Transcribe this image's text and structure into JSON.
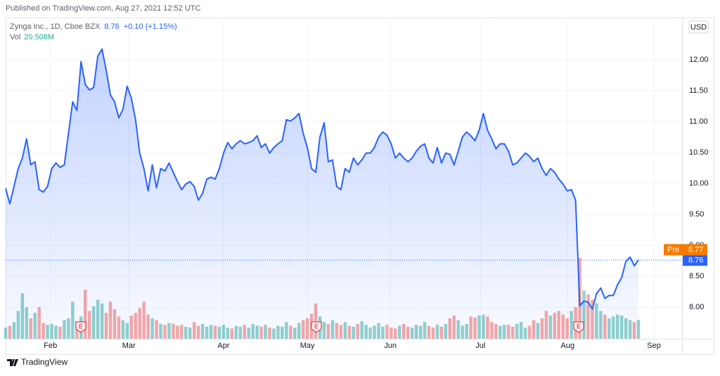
{
  "header": {
    "published": "Published on TradingView.com, Aug 27, 2021 12:52 UTC",
    "brand": "TradingView"
  },
  "chart_data": {
    "type": "area",
    "symbol": "Zynga Inc., 1D, Cboe BZX",
    "change_label": "+0.10 (+1.15%)",
    "currency": "USD",
    "color": "#2962ff",
    "up_color": "rgba(38,166,154,0.5)",
    "down_color": "rgba(239,83,80,0.5)",
    "grid": true,
    "values": [
      9.92,
      9.67,
      9.95,
      10.24,
      10.41,
      10.72,
      10.3,
      10.35,
      9.9,
      9.86,
      9.95,
      10.24,
      10.33,
      10.26,
      10.3,
      10.81,
      11.32,
      11.18,
      11.97,
      11.6,
      11.51,
      11.55,
      12.06,
      12.17,
      11.83,
      11.43,
      11.32,
      11.06,
      11.2,
      11.57,
      11.38,
      11.03,
      10.49,
      10.24,
      9.88,
      10.3,
      9.93,
      10.24,
      10.2,
      10.33,
      10.18,
      10.03,
      9.9,
      9.99,
      10.03,
      9.95,
      9.73,
      9.84,
      10.07,
      10.1,
      10.07,
      10.24,
      10.49,
      10.66,
      10.56,
      10.64,
      10.69,
      10.64,
      10.66,
      10.69,
      10.77,
      10.58,
      10.64,
      10.49,
      10.58,
      10.64,
      10.69,
      11.03,
      11.01,
      11.06,
      11.13,
      10.81,
      10.58,
      10.24,
      10.18,
      10.75,
      10.98,
      10.35,
      10.38,
      9.95,
      9.9,
      10.24,
      10.18,
      10.41,
      10.3,
      10.38,
      10.49,
      10.49,
      10.58,
      10.75,
      10.83,
      10.78,
      10.64,
      10.41,
      10.49,
      10.41,
      10.35,
      10.41,
      10.52,
      10.6,
      10.64,
      10.41,
      10.33,
      10.58,
      10.33,
      10.49,
      10.47,
      10.3,
      10.52,
      10.75,
      10.83,
      10.77,
      10.69,
      10.86,
      11.13,
      10.86,
      10.72,
      10.56,
      10.64,
      10.64,
      10.52,
      10.3,
      10.33,
      10.41,
      10.49,
      10.44,
      10.35,
      10.41,
      10.24,
      10.13,
      10.24,
      10.18,
      10.07,
      9.99,
      9.88,
      9.9,
      9.73,
      8.02,
      8.1,
      8.08,
      7.97,
      8.22,
      8.31,
      8.14,
      8.19,
      8.19,
      8.36,
      8.48,
      8.74,
      8.81,
      8.67,
      8.76
    ],
    "volume_name": "Vol",
    "volume_last_label": "20.508M",
    "volume": [
      12,
      14,
      18,
      30,
      49,
      34,
      22,
      28,
      34,
      17,
      15,
      16,
      14,
      13,
      20,
      22,
      40,
      18,
      24,
      53,
      30,
      35,
      42,
      38,
      28,
      40,
      32,
      24,
      20,
      17,
      25,
      28,
      33,
      40,
      26,
      22,
      20,
      16,
      15,
      17,
      16,
      14,
      15,
      13,
      12,
      18,
      14,
      16,
      13,
      15,
      14,
      13,
      15,
      12,
      11,
      14,
      13,
      15,
      12,
      16,
      14,
      13,
      15,
      12,
      11,
      14,
      13,
      18,
      14,
      12,
      17,
      20,
      22,
      27,
      38,
      24,
      18,
      16,
      20,
      17,
      15,
      18,
      14,
      13,
      16,
      19,
      15,
      12,
      14,
      17,
      13,
      15,
      12,
      11,
      14,
      16,
      13,
      12,
      15,
      14,
      18,
      14,
      12,
      15,
      13,
      16,
      22,
      25,
      20,
      14,
      16,
      24,
      23,
      25,
      26,
      24,
      18,
      16,
      14,
      15,
      15,
      13,
      16,
      18,
      12,
      14,
      20,
      17,
      22,
      30,
      25,
      28,
      30,
      26,
      22,
      30,
      34,
      87,
      52,
      48,
      42,
      38,
      30,
      26,
      22,
      24,
      26,
      25,
      22,
      20,
      18,
      20.508
    ],
    "pre_label": "Pre",
    "pre_price": 8.77,
    "earnings": [
      "E",
      "E",
      "E"
    ],
    "xlim": [
      0,
      161.4
    ],
    "xticks": [
      {
        "value": 10.7,
        "label": "Feb"
      },
      {
        "value": 29.4,
        "label": "Mar"
      },
      {
        "value": 52.0,
        "label": "Apr"
      },
      {
        "value": 72.0,
        "label": "May"
      },
      {
        "value": 91.8,
        "label": "Jun"
      },
      {
        "value": 113.3,
        "label": "Jul"
      },
      {
        "value": 134.1,
        "label": "Aug"
      },
      {
        "value": 154.7,
        "label": "Sep"
      }
    ],
    "ylim": [
      7.49,
      12.68
    ],
    "yticks": [
      {
        "value": 8,
        "label": "8.00"
      },
      {
        "value": 8.5,
        "label": "8.50"
      },
      {
        "value": 9,
        "label": "9.00"
      },
      {
        "value": 9.5,
        "label": "9.50"
      },
      {
        "value": 10,
        "label": "10.00"
      },
      {
        "value": 10.5,
        "label": "10.50"
      },
      {
        "value": 11,
        "label": "11.00"
      },
      {
        "value": 11.5,
        "label": "11.50"
      },
      {
        "value": 12,
        "label": "12.00"
      }
    ]
  }
}
